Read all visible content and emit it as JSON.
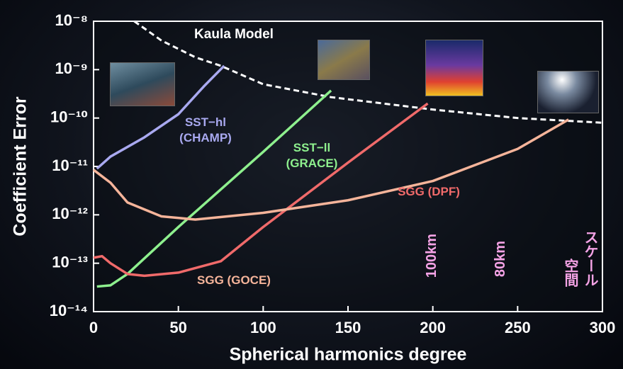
{
  "chart_data": {
    "type": "line",
    "xlabel": "Spherical harmonics degree",
    "ylabel": "Coefficient Error",
    "xlim": [
      0,
      300
    ],
    "xticks": [
      0,
      50,
      100,
      150,
      200,
      250,
      300
    ],
    "ylim": [
      1e-14,
      1e-08
    ],
    "ylog": true,
    "yticks": [
      {
        "value": 1e-14,
        "label": "10⁻¹⁴"
      },
      {
        "value": 1e-13,
        "label": "10⁻¹³"
      },
      {
        "value": 1e-12,
        "label": "10⁻¹²"
      },
      {
        "value": 1e-11,
        "label": "10⁻¹¹"
      },
      {
        "value": 1e-10,
        "label": "10⁻¹⁰"
      },
      {
        "value": 1e-09,
        "label": "10⁻⁹"
      },
      {
        "value": 1e-08,
        "label": "10⁻⁸"
      }
    ],
    "series": [
      {
        "name": "Kaula Model",
        "color": "#ffffff",
        "dashed": true,
        "x": [
          24,
          40,
          60,
          75,
          100,
          140,
          200,
          250,
          300
        ],
        "values": [
          1e-08,
          4e-09,
          1.8e-09,
          1.2e-09,
          5e-10,
          2.7e-10,
          1.5e-10,
          1e-10,
          8e-11
        ]
      },
      {
        "name": "SST−hl (CHAMP)",
        "color": "#a9a9f0",
        "dashed": false,
        "x": [
          2,
          10,
          30,
          50,
          65,
          77
        ],
        "values": [
          9e-12,
          1.6e-11,
          4e-11,
          1.2e-10,
          4.5e-10,
          1.2e-09
        ]
      },
      {
        "name": "SST−ll (GRACE)",
        "color": "#8ef08e",
        "dashed": false,
        "x": [
          2,
          10,
          20,
          50,
          100,
          140
        ],
        "values": [
          3.3e-14,
          3.5e-14,
          6e-14,
          5.6e-13,
          2e-11,
          3.7e-10
        ]
      },
      {
        "name": "SGG (DPF)",
        "color": "#f06a6a",
        "dashed": false,
        "x": [
          0,
          5,
          10,
          20,
          30,
          50,
          75,
          100,
          150,
          197
        ],
        "values": [
          1.3e-13,
          1.4e-13,
          1e-13,
          6e-14,
          5.5e-14,
          6.4e-14,
          1.1e-13,
          5.6e-13,
          1.2e-11,
          2e-10
        ]
      },
      {
        "name": "SGG (GOCE)",
        "color": "#f5b49a",
        "dashed": false,
        "x": [
          0,
          10,
          20,
          40,
          60,
          100,
          150,
          200,
          250,
          280
        ],
        "values": [
          8.5e-12,
          4.6e-12,
          1.8e-12,
          9.3e-13,
          8e-13,
          1.1e-12,
          2e-12,
          5e-12,
          2.3e-11,
          9.3e-11
        ]
      }
    ],
    "annotations": [
      "100km",
      "80km",
      "空間",
      "スケール"
    ]
  }
}
